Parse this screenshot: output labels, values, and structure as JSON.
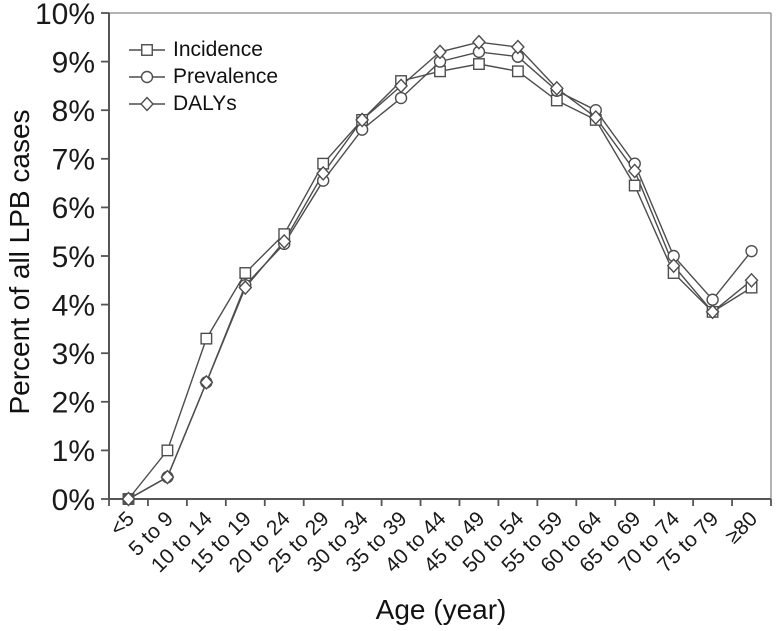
{
  "chart_data": {
    "type": "line",
    "title": "",
    "xlabel": "Age (year)",
    "ylabel": "Percent of all LPB cases",
    "ylim": [
      0,
      10
    ],
    "y_tick_labels": [
      "0%",
      "1%",
      "2%",
      "3%",
      "4%",
      "5%",
      "6%",
      "7%",
      "8%",
      "9%",
      "10%"
    ],
    "categories": [
      "<5",
      "5 to 9",
      "10 to 14",
      "15 to 19",
      "20 to 24",
      "25 to 29",
      "30 to 34",
      "35 to 39",
      "40 to 44",
      "45 to 49",
      "50 to 54",
      "55 to 59",
      "60 to 64",
      "65 to 69",
      "70 to 74",
      "75 to 79",
      "≥80"
    ],
    "series": [
      {
        "name": "Incidence",
        "marker": "square",
        "values": [
          0,
          1.0,
          3.3,
          4.65,
          5.45,
          6.9,
          7.8,
          8.6,
          8.8,
          8.95,
          8.8,
          8.2,
          7.8,
          6.45,
          4.65,
          3.85,
          4.35
        ]
      },
      {
        "name": "Prevalence",
        "marker": "circle",
        "values": [
          0,
          0.45,
          2.4,
          4.4,
          5.25,
          6.55,
          7.6,
          8.25,
          9.0,
          9.2,
          9.1,
          8.4,
          8.0,
          6.9,
          5.0,
          4.1,
          5.1
        ]
      },
      {
        "name": "DALYs",
        "marker": "diamond",
        "values": [
          0,
          0.45,
          2.4,
          4.35,
          5.3,
          6.7,
          7.8,
          8.5,
          9.2,
          9.4,
          9.3,
          8.45,
          7.85,
          6.75,
          4.8,
          3.85,
          4.5
        ]
      }
    ],
    "legend_position": "top-left-inside",
    "grid": false,
    "line_color": "#4d4d4d",
    "marker_fill": "#ffffff",
    "axis_color": "#555555",
    "border_color": "#999999",
    "text_color": "#1a1a1a"
  }
}
